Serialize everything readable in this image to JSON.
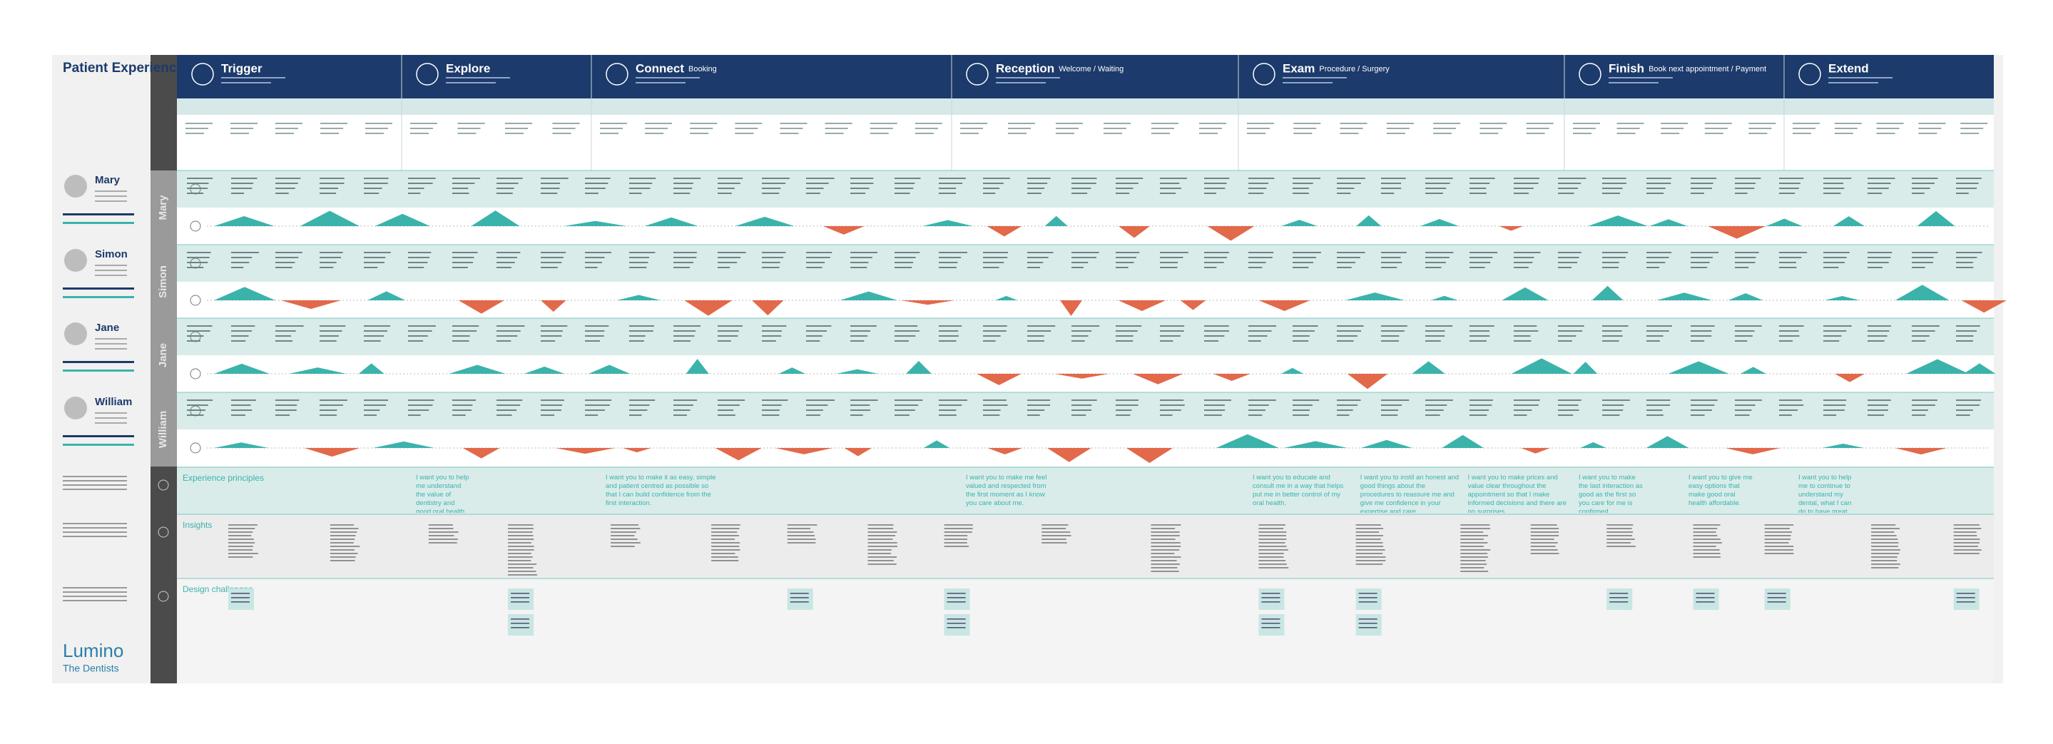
{
  "header": {
    "title": "Patient Experience"
  },
  "stages": [
    {
      "name": "Trigger",
      "subtitle": null
    },
    {
      "name": "Explore",
      "subtitle": null
    },
    {
      "name": "Connect",
      "subtitle": "Booking"
    },
    {
      "name": "Reception",
      "subtitle": "Welcome / Waiting"
    },
    {
      "name": "Exam",
      "subtitle": "Procedure / Surgery"
    },
    {
      "name": "Finish",
      "subtitle": "Book next appointment / Payment"
    },
    {
      "name": "Extend",
      "subtitle": null
    }
  ],
  "personas": [
    {
      "name": "Mary"
    },
    {
      "name": "Simon"
    },
    {
      "name": "Jane"
    },
    {
      "name": "William"
    }
  ],
  "sections": {
    "principles": "Experience principles",
    "insights": "Insights",
    "challenges": "Design challenges"
  },
  "principles": [
    {
      "stage": 1,
      "text": "I want you to help me understand the value of dentistry and good oral health from the first encounter."
    },
    {
      "stage": 2,
      "text": "I want you to make it as easy, simple and patient centred as possible so that I can build confidence from the first interaction."
    },
    {
      "stage": 3,
      "text": "I want you to make me feel valued and respected from the first moment as I know you care about me."
    },
    {
      "stage": 4,
      "text": "I want you to educate and consult me in a way that helps put me in better control of my oral health."
    },
    {
      "stage": 4.33,
      "text": "I want you to instil an honest and good things about the procedures to reassure me and give me confidence in your expertise and care."
    },
    {
      "stage": 4.66,
      "text": "I want you to make prices and value clear throughout the appointment so that I make informed decisions and there are no surprises."
    },
    {
      "stage": 5,
      "text": "I want you to make the last interaction as good as the first so you care for me is confirmed."
    },
    {
      "stage": 5.5,
      "text": "I want you to give me easy options that make good oral health affordable."
    },
    {
      "stage": 6,
      "text": "I want you to help me to continue to understand my dental, what I can do to have great oral health and the value of your work in that."
    }
  ],
  "logo": {
    "brand": "Lumino",
    "tagline": "The Dentists"
  }
}
